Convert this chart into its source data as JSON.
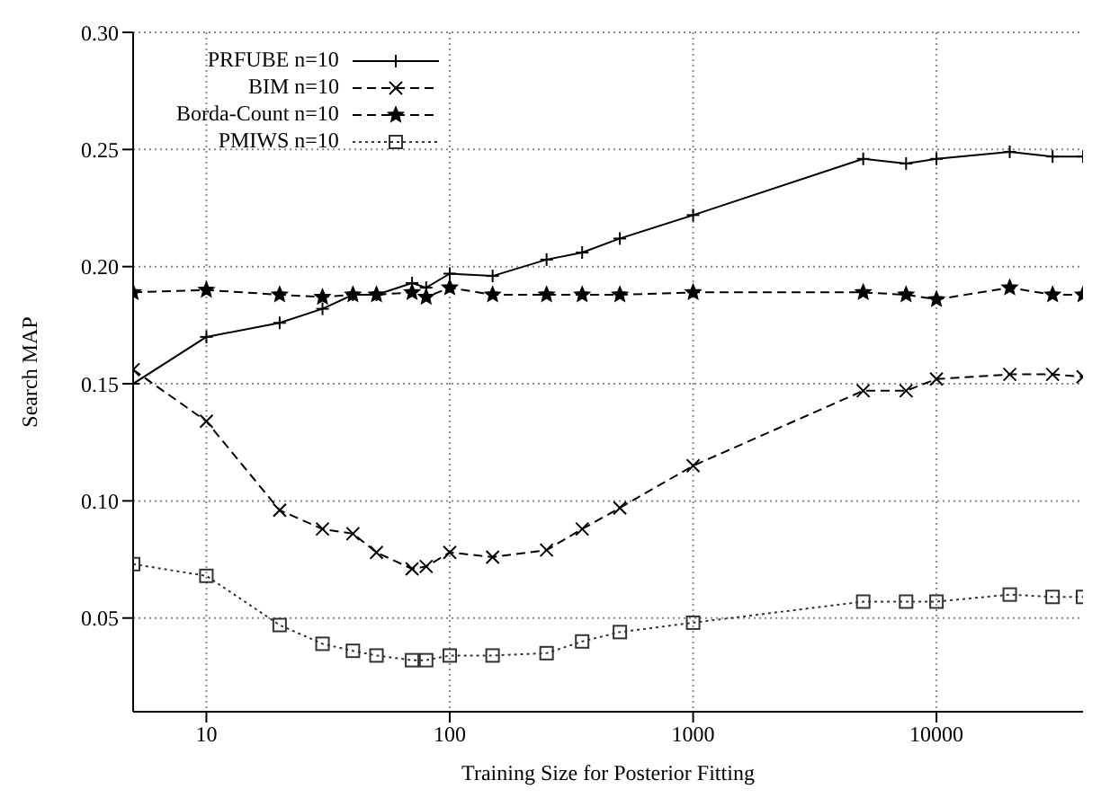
{
  "chart_data": {
    "type": "line",
    "xlabel": "Training Size for Posterior Fitting",
    "ylabel": "Search MAP",
    "x": [
      5,
      10,
      20,
      30,
      40,
      50,
      70,
      80,
      100,
      150,
      250,
      350,
      500,
      1000,
      5000,
      7500,
      10000,
      20000,
      30000,
      40000
    ],
    "series": [
      {
        "name": "PRFUBE n=10",
        "color": "#000000",
        "marker": "cross",
        "line_style": "solid",
        "values": [
          0.15,
          0.17,
          0.176,
          0.182,
          0.188,
          0.188,
          0.193,
          0.191,
          0.197,
          0.196,
          0.203,
          0.206,
          0.212,
          0.222,
          0.246,
          0.244,
          0.246,
          0.249,
          0.247,
          0.247
        ]
      },
      {
        "name": "BIM n=10",
        "color": "#000000",
        "marker": "x",
        "line_style": "dashed",
        "values": [
          0.156,
          0.134,
          0.096,
          0.088,
          0.086,
          0.078,
          0.071,
          0.072,
          0.078,
          0.076,
          0.079,
          0.088,
          0.097,
          0.115,
          0.147,
          0.147,
          0.152,
          0.154,
          0.154,
          0.153
        ]
      },
      {
        "name": "Borda-Count n=10",
        "color": "#000000",
        "marker": "star",
        "line_style": "dashed",
        "values": [
          0.189,
          0.19,
          0.188,
          0.187,
          0.188,
          0.188,
          0.189,
          0.187,
          0.191,
          0.188,
          0.188,
          0.188,
          0.188,
          0.189,
          0.189,
          0.188,
          0.186,
          0.191,
          0.188,
          0.188
        ]
      },
      {
        "name": "PMIWS n=10",
        "color": "#333333",
        "marker": "square",
        "line_style": "dotted",
        "values": [
          0.073,
          0.068,
          0.047,
          0.039,
          0.036,
          0.034,
          0.032,
          0.032,
          0.034,
          0.034,
          0.035,
          0.04,
          0.044,
          0.048,
          0.057,
          0.057,
          0.057,
          0.06,
          0.059,
          0.059
        ]
      }
    ],
    "log": "x",
    "xlim": [
      5,
      40000
    ],
    "xticks": [
      10,
      100,
      1000,
      10000
    ],
    "ylim": [
      0.01,
      0.3
    ],
    "yticks": [
      0.05,
      {
        "value": 0.1,
        "label": "0.10"
      },
      0.15,
      {
        "value": 0.2,
        "label": "0.20"
      },
      0.25,
      {
        "value": 0.3,
        "label": "0.30"
      }
    ],
    "grid": true,
    "legend": "top left"
  }
}
